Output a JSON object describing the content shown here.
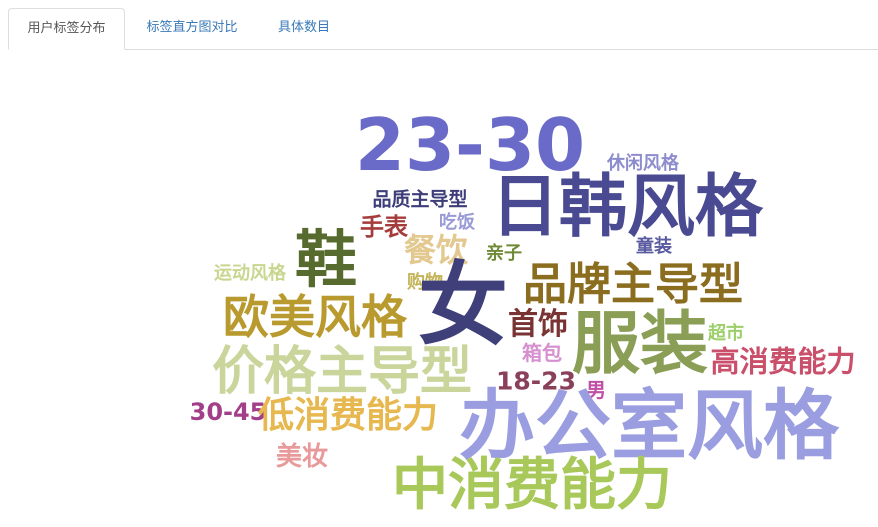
{
  "tabs": [
    {
      "label": "用户标签分布",
      "active": true
    },
    {
      "label": "标签直方图对比",
      "active": false
    },
    {
      "label": "具体数目",
      "active": false
    }
  ],
  "wordcloud": {
    "words": [
      {
        "text": "23-30",
        "color": "#6a6ac8"
      },
      {
        "text": "日韩风格",
        "color": "#4a4a92"
      },
      {
        "text": "休闲风格",
        "color": "#8c8cce"
      },
      {
        "text": "品质主导型",
        "color": "#3d3d7a"
      },
      {
        "text": "鞋",
        "color": "#576b2e"
      },
      {
        "text": "手表",
        "color": "#a53b3b"
      },
      {
        "text": "吃饭",
        "color": "#9a9ad6"
      },
      {
        "text": "餐饮",
        "color": "#e3c88f"
      },
      {
        "text": "亲子",
        "color": "#6f8a36"
      },
      {
        "text": "童装",
        "color": "#5a5aa0"
      },
      {
        "text": "运动风格",
        "color": "#c8d68f"
      },
      {
        "text": "购物",
        "color": "#c4b45a"
      },
      {
        "text": "女",
        "color": "#3f3f7a"
      },
      {
        "text": "品牌主导型",
        "color": "#8a6d1f"
      },
      {
        "text": "欧美风格",
        "color": "#b89a2f"
      },
      {
        "text": "首饰",
        "color": "#7a3333"
      },
      {
        "text": "服装",
        "color": "#8a9e55"
      },
      {
        "text": "超市",
        "color": "#9ccf6a"
      },
      {
        "text": "价格主导型",
        "color": "#c9d59a"
      },
      {
        "text": "箱包",
        "color": "#d68fcf"
      },
      {
        "text": "高消费能力",
        "color": "#c94f6b"
      },
      {
        "text": "18-23",
        "color": "#8a3f5a"
      },
      {
        "text": "男",
        "color": "#c04fa6"
      },
      {
        "text": "30-45",
        "color": "#a33f8a"
      },
      {
        "text": "低消费能力",
        "color": "#e7b84f"
      },
      {
        "text": "办公室风格",
        "color": "#9a9ee0"
      },
      {
        "text": "美妆",
        "color": "#e89a9a"
      },
      {
        "text": "中消费能力",
        "color": "#a8c95a"
      }
    ]
  }
}
